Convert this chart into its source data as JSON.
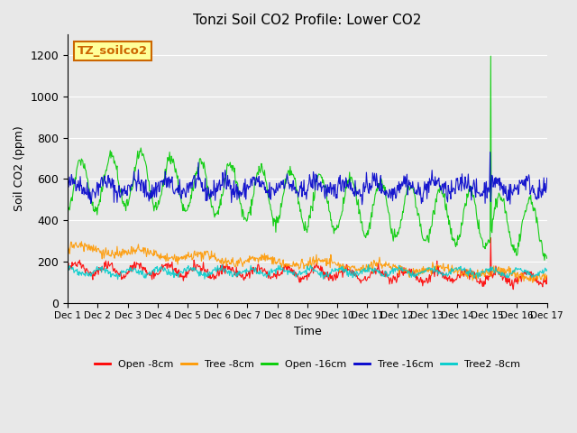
{
  "title": "Tonzi Soil CO2 Profile: Lower CO2",
  "xlabel": "Time",
  "ylabel": "Soil CO2 (ppm)",
  "ylim": [
    0,
    1300
  ],
  "yticks": [
    0,
    200,
    400,
    600,
    800,
    1000,
    1200
  ],
  "background_color": "#e8e8e8",
  "plot_bg_color": "#e8e8e8",
  "label_box_text": "TZ_soilco2",
  "label_box_color": "#ffff99",
  "label_box_border": "#cc6600",
  "series": [
    {
      "name": "Open -8cm",
      "color": "#ff0000"
    },
    {
      "name": "Tree -8cm",
      "color": "#ff9900"
    },
    {
      "name": "Open -16cm",
      "color": "#00cc00"
    },
    {
      "name": "Tree -16cm",
      "color": "#0000cc"
    },
    {
      "name": "Tree2 -8cm",
      "color": "#00cccc"
    }
  ],
  "n_days": 16,
  "points_per_day": 48,
  "seed": 42
}
